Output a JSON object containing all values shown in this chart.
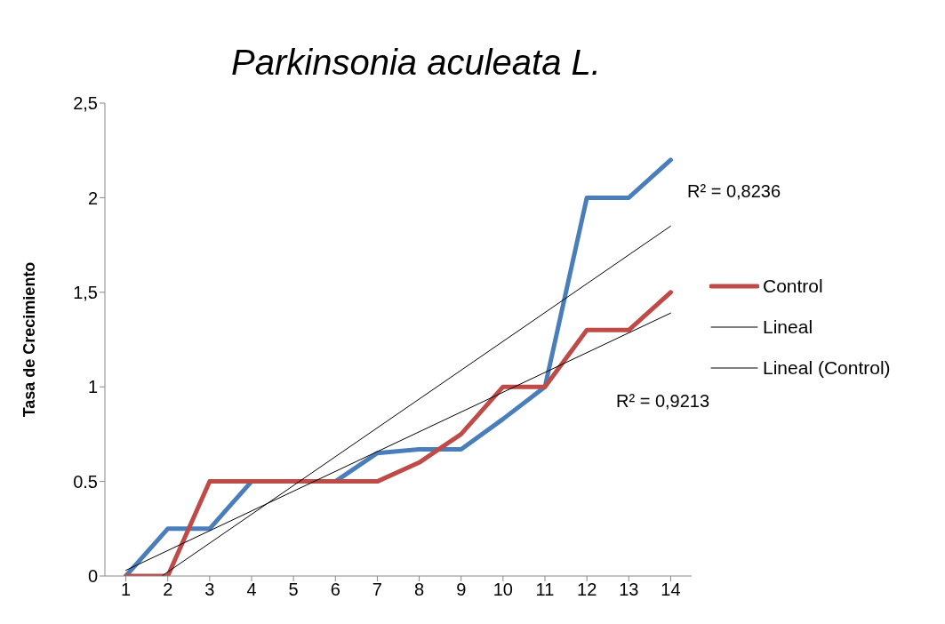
{
  "chart_data": {
    "type": "line",
    "title": "Parkinsonia aculeata  L.",
    "ylabel": "Tasa de Crecimiento",
    "x": [
      1,
      2,
      3,
      4,
      5,
      6,
      7,
      8,
      9,
      10,
      11,
      12,
      13,
      14
    ],
    "xlim": [
      0.5,
      14.5
    ],
    "xticks": [
      1,
      2,
      3,
      4,
      5,
      6,
      7,
      8,
      9,
      10,
      11,
      12,
      13,
      14
    ],
    "ylim": [
      0,
      2.5
    ],
    "yticks": [
      0,
      {
        "value": 0.5,
        "label": "0.5"
      },
      1,
      {
        "value": 1.5,
        "label": "1,5"
      },
      2,
      {
        "value": 2.5,
        "label": "2,5"
      }
    ],
    "grid": false,
    "legend": "right",
    "marker": "none",
    "series": [
      {
        "color": "#4a7ebb",
        "values": [
          0,
          0.25,
          0.25,
          0.5,
          0.5,
          0.5,
          0.65,
          0.67,
          0.67,
          0.83,
          1,
          2,
          2,
          2.2
        ]
      },
      {
        "name": "Control",
        "color": "#be4b48",
        "values": [
          0,
          0,
          0.5,
          0.5,
          0.5,
          0.5,
          0.5,
          0.6,
          0.75,
          1,
          1,
          1.3,
          1.3,
          1.5
        ]
      },
      {
        "name": "Lineal",
        "color": "#000000",
        "x": [
          1.86,
          14
        ],
        "values": [
          0,
          1.85
        ]
      },
      {
        "name": "Lineal (Control)",
        "color": "#000000",
        "x": [
          1,
          14
        ],
        "values": [
          0.03,
          1.39
        ]
      }
    ],
    "annotations": [
      "R² = 0,8236",
      "R² = 0,9213"
    ]
  }
}
